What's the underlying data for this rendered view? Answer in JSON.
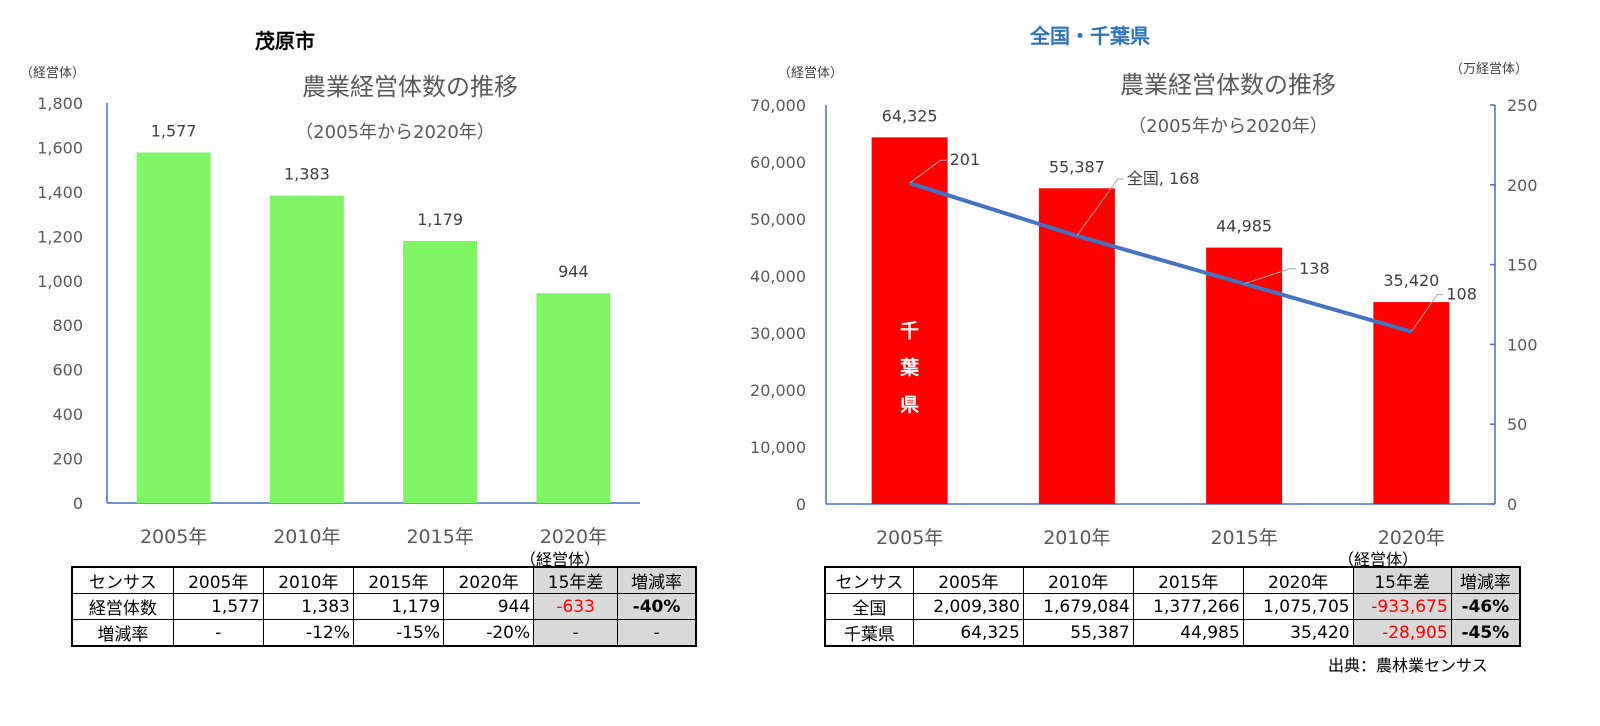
{
  "chart_data": [
    {
      "type": "bar",
      "panel_title": "茂原市",
      "title": "農業経営体数の推移",
      "subtitle": "（2005年から2020年）",
      "unit_label": "（経営体）",
      "categories": [
        "2005年",
        "2010年",
        "2015年",
        "2020年"
      ],
      "series": [
        {
          "values": [
            1577,
            1383,
            1179,
            944
          ],
          "labels": [
            "1,577",
            "1,383",
            "1,179",
            "944"
          ]
        }
      ],
      "ylim": [
        0,
        1800
      ],
      "yticks": [
        "0",
        "200",
        "400",
        "600",
        "800",
        "1,000",
        "1,200",
        "1,400",
        "1,600",
        "1,800"
      ],
      "bar_color": "#7ff565",
      "grid": false
    },
    {
      "type": "bar",
      "panel_title": "全国・千葉県",
      "title": "農業経営体数の推移",
      "subtitle": "（2005年から2020年）",
      "unit_label_left": "（経営体）",
      "unit_label_right": "（万経営体）",
      "categories": [
        "2005年",
        "2010年",
        "2015年",
        "2020年"
      ],
      "series": [
        {
          "name": "千葉県",
          "type": "bar",
          "axis": "left",
          "values": [
            64325,
            55387,
            44985,
            35420
          ],
          "labels": [
            "64,325",
            "55,387",
            "44,985",
            "35,420"
          ],
          "color": "#ff0000"
        },
        {
          "name": "全国",
          "type": "line",
          "axis": "right",
          "values": [
            201,
            168,
            138,
            108
          ],
          "labels": [
            "201",
            "全国, 168",
            "138",
            "108"
          ],
          "color": "#4472c4"
        }
      ],
      "bar_inner_label": [
        "千",
        "葉",
        "県"
      ],
      "ylim_left": [
        0,
        70000
      ],
      "yticks_left": [
        "0",
        "10,000",
        "20,000",
        "30,000",
        "40,000",
        "50,000",
        "60,000",
        "70,000"
      ],
      "ylim_right": [
        0,
        250
      ],
      "yticks_right": [
        "0",
        "50",
        "100",
        "150",
        "200",
        "250"
      ],
      "grid": false
    }
  ],
  "table_left": {
    "unit": "（経営体）",
    "header": [
      "センサス",
      "2005年",
      "2010年",
      "2015年",
      "2020年",
      "15年差",
      "増減率"
    ],
    "rows": [
      [
        "経営体数",
        "1,577",
        "1,383",
        "1,179",
        "944",
        "-633",
        "-40%"
      ],
      [
        "増減率",
        "-",
        "-12%",
        "-15%",
        "-20%",
        "-",
        "-"
      ]
    ]
  },
  "table_right": {
    "unit": "（経営体）",
    "header": [
      "センサス",
      "2005年",
      "2010年",
      "2015年",
      "2020年",
      "15年差",
      "増減率"
    ],
    "rows": [
      [
        "全国",
        "2,009,380",
        "1,679,084",
        "1,377,266",
        "1,075,705",
        "-933,675",
        "-46%"
      ],
      [
        "千葉県",
        "64,325",
        "55,387",
        "44,985",
        "35,420",
        "-28,905",
        "-45%"
      ]
    ]
  },
  "source": "出典：農林業センサス",
  "colors": {
    "panel_title_left": "#000000",
    "panel_title_right": "#2e75b6",
    "axis": "#4472c4",
    "negative": "#ff0000",
    "gray_cell": "#d9d9d9"
  }
}
